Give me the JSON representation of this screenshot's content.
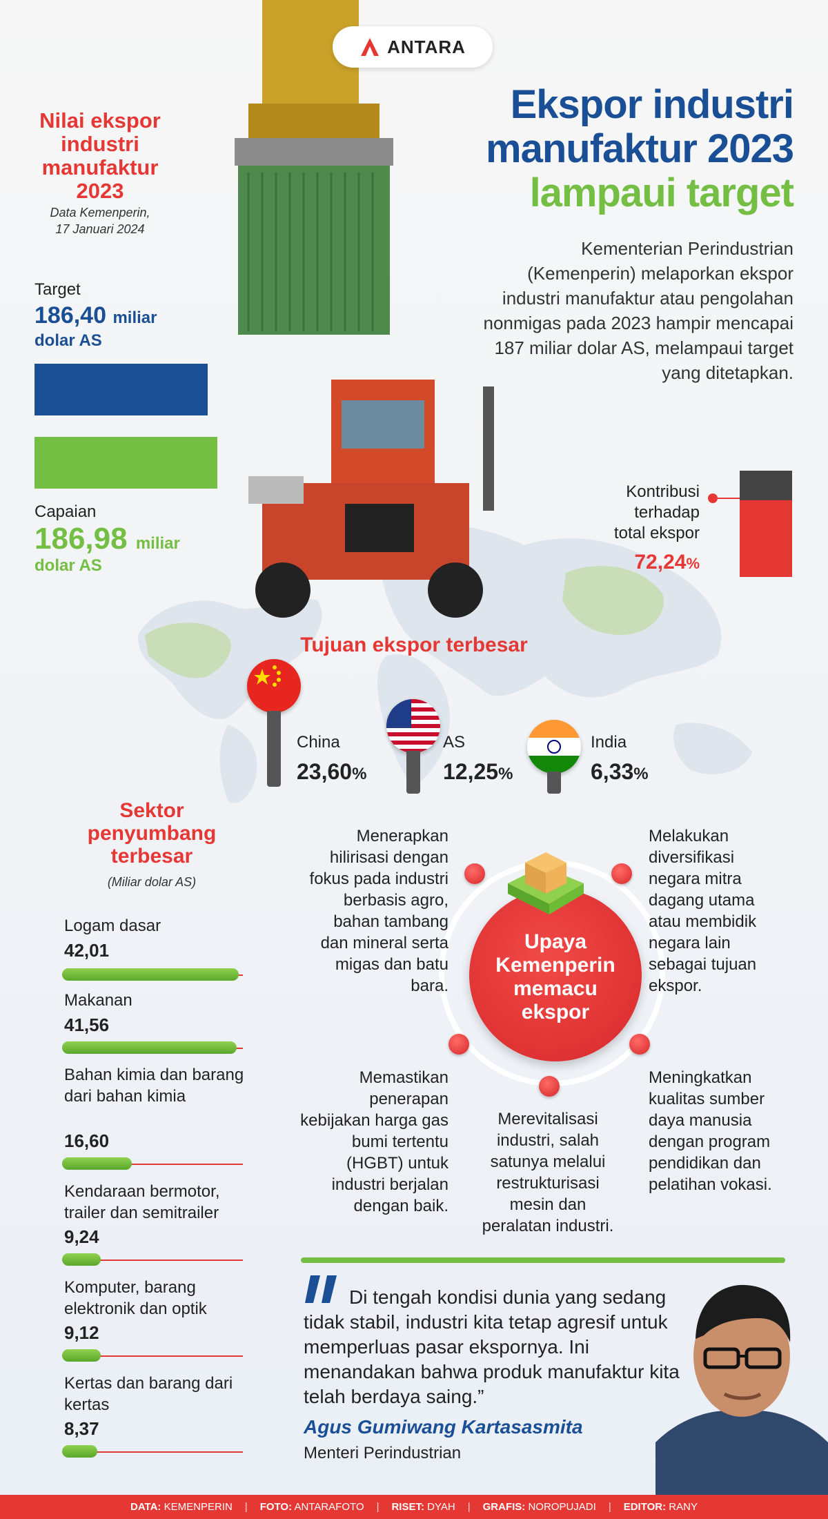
{
  "brand": {
    "name": "ANTARA"
  },
  "header": {
    "left_title": "Nilai ekspor industri manufaktur 2023",
    "left_source_line1": "Data Kemenperin,",
    "left_source_line2": "17 Januari 2024",
    "title_line1": "Ekspor industri",
    "title_line2": "manufaktur 2023",
    "title_line3": "lampaui target",
    "intro": "Kementerian Perindustrian (Kemenperin) melaporkan ekspor industri manufaktur atau pengolahan nonmigas pada 2023 hampir mencapai 187 miliar dolar AS, melampaui target yang ditetapkan."
  },
  "values": {
    "target_label": "Target",
    "target_number": "186,40",
    "target_suffix": "miliar",
    "target_unit": "dolar AS",
    "target_amount": 186.4,
    "capaian_label": "Capaian",
    "capaian_number": "186,98",
    "capaian_suffix": "miliar",
    "capaian_unit": "dolar AS",
    "capaian_amount": 186.98
  },
  "contribution": {
    "line1": "Kontribusi",
    "line2": "terhadap",
    "line3": "total ekspor",
    "value": "72,24",
    "unit": "%",
    "fraction": 0.7224
  },
  "destinations": {
    "title": "Tujuan ekspor terbesar",
    "items": [
      {
        "name": "China",
        "value": "23,60",
        "unit": "%"
      },
      {
        "name": "AS",
        "value": "12,25",
        "unit": "%"
      },
      {
        "name": "India",
        "value": "6,33",
        "unit": "%"
      }
    ]
  },
  "sectors": {
    "title": "Sektor penyumbang terbesar",
    "unit_note": "(Miliar dolar AS)",
    "items": [
      {
        "name": "Logam dasar",
        "value": "42,01",
        "amount": 42.01
      },
      {
        "name": "Makanan",
        "value": "41,56",
        "amount": 41.56
      },
      {
        "name": "Bahan kimia dan barang dari bahan kimia",
        "value": "16,60",
        "amount": 16.6
      },
      {
        "name": "Kendaraan bermotor, trailer dan semitrailer",
        "value": "9,24",
        "amount": 9.24
      },
      {
        "name": "Komputer, barang elektronik dan optik",
        "value": "9,12",
        "amount": 9.12
      },
      {
        "name": "Kertas dan barang dari kertas",
        "value": "8,37",
        "amount": 8.37
      }
    ]
  },
  "upaya": {
    "center_line1": "Upaya",
    "center_line2": "Kemenperin",
    "center_line3": "memacu",
    "center_line4": "ekspor",
    "items": [
      "Menerapkan hilirisasi dengan fokus pada industri berbasis agro, bahan tambang dan mineral serta migas dan batu bara.",
      "Melakukan diversifikasi negara mitra dagang utama atau membidik negara lain sebagai tujuan ekspor.",
      "Memastikan penerapan kebijakan harga gas bumi tertentu (HGBT) untuk industri berjalan dengan baik.",
      "Merevitalisasi industri, salah satunya melalui restrukturisasi mesin dan peralatan industri.",
      "Meningkatkan kualitas sumber daya manusia dengan program pendidikan dan pelatihan vokasi."
    ]
  },
  "quote": {
    "text": "Di tengah kondisi dunia yang sedang tidak stabil, industri kita tetap agresif untuk memperluas pasar ekspornya. Ini menandakan bahwa produk manufaktur kita telah berdaya saing.”",
    "speaker": "Agus Gumiwang Kartasasmita",
    "role": "Menteri Perindustrian"
  },
  "footer": [
    {
      "key": "DATA:",
      "value": "KEMENPERIN"
    },
    {
      "key": "FOTO:",
      "value": "ANTARAFOTO"
    },
    {
      "key": "RISET:",
      "value": "DYAH"
    },
    {
      "key": "GRAFIS:",
      "value": "NOROPUJADI"
    },
    {
      "key": "EDITOR:",
      "value": "RANY"
    }
  ],
  "colors": {
    "red": "#e53835",
    "blue": "#1a4f96",
    "green": "#74be44"
  }
}
